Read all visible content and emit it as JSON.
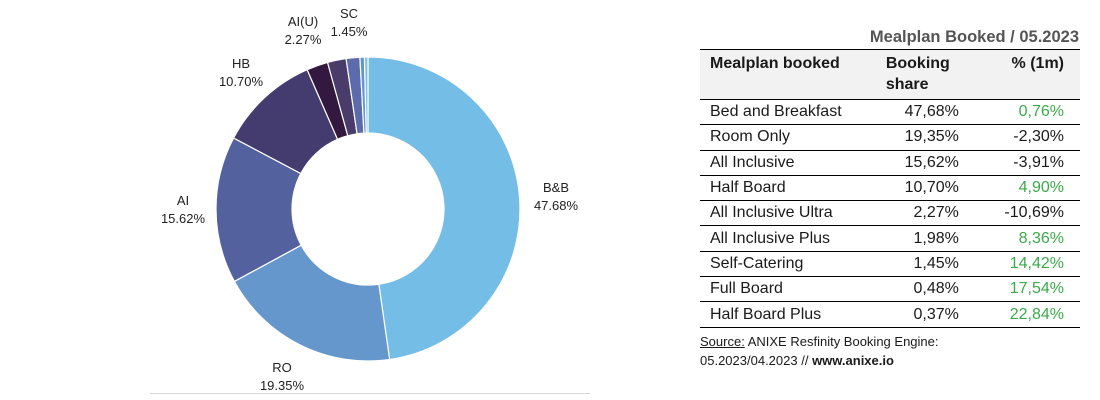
{
  "chart_data": {
    "type": "pie",
    "variant": "donut",
    "start_angle_deg": 0,
    "direction": "clockwise",
    "slices": [
      {
        "label": "B&B",
        "pct_label": "47.68%",
        "value": 47.68,
        "color": "#74bde6"
      },
      {
        "label": "RO",
        "pct_label": "19.35%",
        "value": 19.35,
        "color": "#6596cc"
      },
      {
        "label": "AI",
        "pct_label": "15.62%",
        "value": 15.62,
        "color": "#53619f"
      },
      {
        "label": "HB",
        "pct_label": "10.70%",
        "value": 10.7,
        "color": "#443c6e"
      },
      {
        "label": "AI(U)",
        "pct_label": "2.27%",
        "value": 2.27,
        "color": "#33183f"
      },
      {
        "label": "",
        "pct_label": "",
        "value": 1.98,
        "color": "#493c6b"
      },
      {
        "label": "SC",
        "pct_label": "1.45%",
        "value": 1.45,
        "color": "#5b6bab"
      },
      {
        "label": "",
        "pct_label": "",
        "value": 0.48,
        "color": "#6597cf"
      },
      {
        "label": "",
        "pct_label": "",
        "value": 0.37,
        "color": "#7bc0ea"
      }
    ]
  },
  "table": {
    "title": "Mealplan Booked / 05.2023",
    "headers": {
      "mealplan": "Mealplan booked",
      "share_line1": "Booking",
      "share_line2": "share",
      "change": "% (1m)"
    },
    "rows": [
      {
        "name": "Bed and Breakfast",
        "share": "47,68%",
        "change": "0,76%",
        "trend": "pos"
      },
      {
        "name": "Room Only",
        "share": "19,35%",
        "change": "-2,30%",
        "trend": "neg"
      },
      {
        "name": "All Inclusive",
        "share": "15,62%",
        "change": "-3,91%",
        "trend": "neg"
      },
      {
        "name": "Half Board",
        "share": "10,70%",
        "change": "4,90%",
        "trend": "pos"
      },
      {
        "name": "All Inclusive Ultra",
        "share": "2,27%",
        "change": "-10,69%",
        "trend": "neg"
      },
      {
        "name": "All Inclusive Plus",
        "share": "1,98%",
        "change": "8,36%",
        "trend": "pos"
      },
      {
        "name": "Self-Catering",
        "share": "1,45%",
        "change": "14,42%",
        "trend": "pos"
      },
      {
        "name": "Full Board",
        "share": "0,48%",
        "change": "17,54%",
        "trend": "pos"
      },
      {
        "name": "Half Board Plus",
        "share": "0,37%",
        "change": "22,84%",
        "trend": "pos"
      }
    ]
  },
  "source": {
    "label": "Source:",
    "text": "ANIXE Resfinity Booking Engine:",
    "line2": "05.2023/04.2023 //",
    "website": "www.anixe.io"
  }
}
